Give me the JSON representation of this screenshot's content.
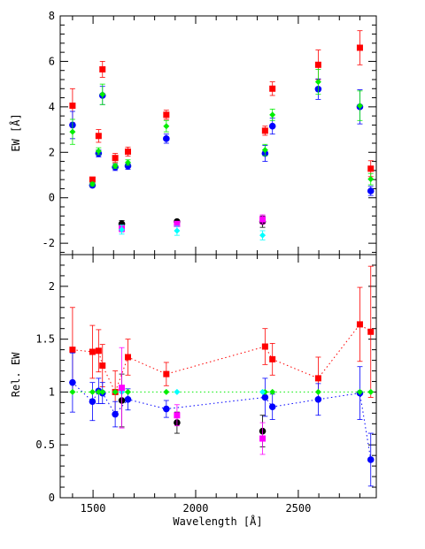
{
  "chart_data": [
    {
      "panel": "top",
      "type": "scatter",
      "ylabel": "EW [Å]",
      "ylim": [
        -2.5,
        8
      ],
      "yticks": [
        -2,
        0,
        2,
        4,
        6,
        8
      ],
      "xlim": [
        1340,
        2880
      ],
      "series": [
        {
          "color": "#ff0000",
          "marker": "square",
          "points": [
            {
              "x": 1400,
              "y": 4.05,
              "err": 0.75
            },
            {
              "x": 1497,
              "y": 0.8,
              "err": 0.1
            },
            {
              "x": 1527,
              "y": 2.72,
              "err": 0.28
            },
            {
              "x": 1546,
              "y": 5.65,
              "err": 0.35
            },
            {
              "x": 1608,
              "y": 1.75,
              "err": 0.2
            },
            {
              "x": 1670,
              "y": 2.03,
              "err": 0.2
            },
            {
              "x": 1857,
              "y": 3.65,
              "err": 0.2
            },
            {
              "x": 2338,
              "y": 2.95,
              "err": 0.2
            },
            {
              "x": 2374,
              "y": 4.8,
              "err": 0.3
            },
            {
              "x": 2597,
              "y": 5.85,
              "err": 0.65
            },
            {
              "x": 2800,
              "y": 6.6,
              "err": 0.75
            },
            {
              "x": 2853,
              "y": 1.28,
              "err": 0.35
            }
          ]
        },
        {
          "color": "#0000ff",
          "marker": "circle",
          "points": [
            {
              "x": 1400,
              "y": 3.2,
              "err": 0.6
            },
            {
              "x": 1497,
              "y": 0.55,
              "err": 0.08
            },
            {
              "x": 1527,
              "y": 1.95,
              "err": 0.15
            },
            {
              "x": 1546,
              "y": 4.5,
              "err": 0.4
            },
            {
              "x": 1608,
              "y": 1.35,
              "err": 0.15
            },
            {
              "x": 1670,
              "y": 1.4,
              "err": 0.15
            },
            {
              "x": 1857,
              "y": 2.6,
              "err": 0.2
            },
            {
              "x": 2338,
              "y": 1.95,
              "err": 0.35
            },
            {
              "x": 2374,
              "y": 3.15,
              "err": 0.35
            },
            {
              "x": 2597,
              "y": 4.78,
              "err": 0.45
            },
            {
              "x": 2800,
              "y": 4.0,
              "err": 0.75
            },
            {
              "x": 2853,
              "y": 0.3,
              "err": 0.2
            }
          ]
        },
        {
          "color": "#00ee00",
          "marker": "diamond",
          "points": [
            {
              "x": 1400,
              "y": 2.9,
              "err": 0.55
            },
            {
              "x": 1497,
              "y": 0.6,
              "err": 0.08
            },
            {
              "x": 1527,
              "y": 2.05,
              "err": 0.15
            },
            {
              "x": 1546,
              "y": 4.55,
              "err": 0.45
            },
            {
              "x": 1608,
              "y": 1.4,
              "err": 0.1
            },
            {
              "x": 1670,
              "y": 1.55,
              "err": 0.12
            },
            {
              "x": 1857,
              "y": 3.15,
              "err": 0.25
            },
            {
              "x": 2338,
              "y": 2.1,
              "err": 0.25
            },
            {
              "x": 2374,
              "y": 3.65,
              "err": 0.25
            },
            {
              "x": 2597,
              "y": 5.1,
              "err": 0.55
            },
            {
              "x": 2800,
              "y": 4.05,
              "err": 0.65
            },
            {
              "x": 2853,
              "y": 0.82,
              "err": 0.25
            }
          ]
        },
        {
          "color": "#000000",
          "marker": "circle",
          "points": [
            {
              "x": 1640,
              "y": -1.15,
              "err": 0.15
            },
            {
              "x": 1909,
              "y": -1.05,
              "err": 0.08
            },
            {
              "x": 2326,
              "y": -1.05,
              "err": 0.25
            }
          ]
        },
        {
          "color": "#ff00ff",
          "marker": "square",
          "points": [
            {
              "x": 1640,
              "y": -1.35,
              "err": 0.15
            },
            {
              "x": 1909,
              "y": -1.15,
              "err": 0.1
            },
            {
              "x": 2326,
              "y": -0.95,
              "err": 0.2
            }
          ]
        },
        {
          "color": "#00ffff",
          "marker": "diamond",
          "points": [
            {
              "x": 1640,
              "y": -1.4,
              "err": 0.2
            },
            {
              "x": 1909,
              "y": -1.45,
              "err": 0.2
            },
            {
              "x": 2326,
              "y": -1.65,
              "err": 0.2
            }
          ]
        }
      ]
    },
    {
      "panel": "bottom",
      "type": "scatter",
      "xlabel": "Wavelength [Å]",
      "ylabel": "Rel. EW",
      "ylim": [
        0,
        2.3
      ],
      "yticks": [
        0,
        0.5,
        1,
        1.5,
        2
      ],
      "xlim": [
        1340,
        2880
      ],
      "xticks": [
        1500,
        2000,
        2500
      ],
      "series": [
        {
          "color": "#ff0000",
          "marker": "square",
          "line": true,
          "points": [
            {
              "x": 1400,
              "y": 1.4,
              "err": 0.4
            },
            {
              "x": 1497,
              "y": 1.38,
              "err": 0.25
            },
            {
              "x": 1527,
              "y": 1.39,
              "err": 0.2
            },
            {
              "x": 1546,
              "y": 1.25,
              "err": 0.2
            },
            {
              "x": 1608,
              "y": 1.0,
              "err": 0.2
            },
            {
              "x": 1670,
              "y": 1.33,
              "err": 0.17
            },
            {
              "x": 1857,
              "y": 1.17,
              "err": 0.11
            },
            {
              "x": 2338,
              "y": 1.43,
              "err": 0.17
            },
            {
              "x": 2374,
              "y": 1.31,
              "err": 0.15
            },
            {
              "x": 2597,
              "y": 1.13,
              "err": 0.2
            },
            {
              "x": 2800,
              "y": 1.64,
              "err": 0.35
            },
            {
              "x": 2853,
              "y": 1.57,
              "err": 0.62
            }
          ]
        },
        {
          "color": "#0000ff",
          "marker": "circle",
          "line": true,
          "points": [
            {
              "x": 1400,
              "y": 1.09,
              "err": 0.28
            },
            {
              "x": 1497,
              "y": 0.91,
              "err": 0.18
            },
            {
              "x": 1527,
              "y": 1.01,
              "err": 0.12
            },
            {
              "x": 1546,
              "y": 0.99,
              "err": 0.1
            },
            {
              "x": 1608,
              "y": 0.79,
              "err": 0.12
            },
            {
              "x": 1670,
              "y": 0.93,
              "err": 0.1
            },
            {
              "x": 1857,
              "y": 0.84,
              "err": 0.08
            },
            {
              "x": 2338,
              "y": 0.95,
              "err": 0.18
            },
            {
              "x": 2374,
              "y": 0.86,
              "err": 0.12
            },
            {
              "x": 2597,
              "y": 0.93,
              "err": 0.15
            },
            {
              "x": 2800,
              "y": 0.99,
              "err": 0.25
            },
            {
              "x": 2853,
              "y": 0.36,
              "err": 0.25
            }
          ]
        },
        {
          "color": "#00ee00",
          "marker": "diamond",
          "line": true,
          "points": [
            {
              "x": 1400,
              "y": 1.0
            },
            {
              "x": 1497,
              "y": 1.0
            },
            {
              "x": 1527,
              "y": 1.0
            },
            {
              "x": 1546,
              "y": 1.0
            },
            {
              "x": 1608,
              "y": 1.0
            },
            {
              "x": 1670,
              "y": 1.0
            },
            {
              "x": 1857,
              "y": 1.0
            },
            {
              "x": 2338,
              "y": 1.0
            },
            {
              "x": 2374,
              "y": 1.0
            },
            {
              "x": 2597,
              "y": 1.0
            },
            {
              "x": 2800,
              "y": 1.0
            },
            {
              "x": 2853,
              "y": 1.0
            }
          ]
        },
        {
          "color": "#00ffff",
          "marker": "diamond",
          "points": [
            {
              "x": 1640,
              "y": 1.0
            },
            {
              "x": 1909,
              "y": 1.0
            },
            {
              "x": 2326,
              "y": 1.0
            }
          ]
        },
        {
          "color": "#000000",
          "marker": "circle",
          "points": [
            {
              "x": 1640,
              "y": 0.92,
              "err": 0.25
            },
            {
              "x": 1909,
              "y": 0.71,
              "err": 0.1
            },
            {
              "x": 2326,
              "y": 0.63,
              "err": 0.15
            }
          ]
        },
        {
          "color": "#ff00ff",
          "marker": "square",
          "points": [
            {
              "x": 1640,
              "y": 1.04,
              "err": 0.38
            },
            {
              "x": 1909,
              "y": 0.78,
              "err": 0.1
            },
            {
              "x": 2326,
              "y": 0.56,
              "err": 0.15
            }
          ]
        }
      ]
    }
  ]
}
